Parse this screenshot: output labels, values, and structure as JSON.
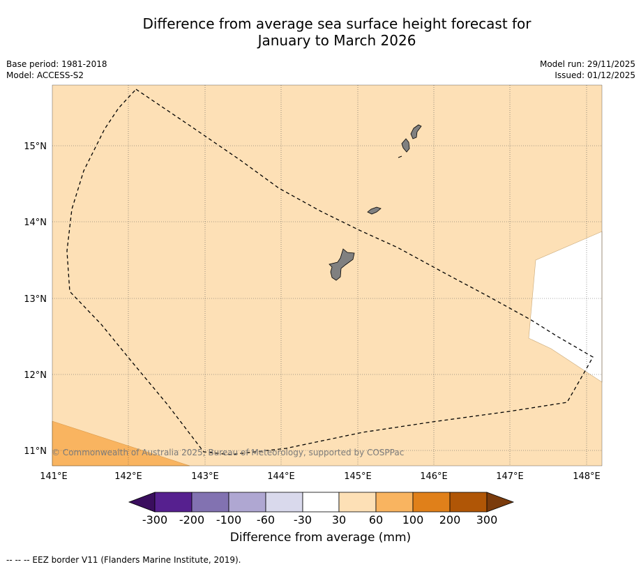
{
  "title": {
    "line1": "Difference from average sea surface height forecast for",
    "line2": "January to March 2026"
  },
  "meta_left": {
    "base_period": "Base period: 1981-2018",
    "model": "Model: ACCESS-S2"
  },
  "meta_right": {
    "model_run": "Model run: 29/11/2025",
    "issued": "Issued: 01/12/2025"
  },
  "map": {
    "lon_range": [
      141.0,
      148.2
    ],
    "lat_range": [
      10.8,
      15.8
    ],
    "lon_ticks": [
      "141°E",
      "142°E",
      "143°E",
      "144°E",
      "145°E",
      "146°E",
      "147°E",
      "148°E"
    ],
    "lat_ticks": [
      "15°N",
      "14°N",
      "13°N",
      "12°N",
      "11°N"
    ],
    "background_category": "30 to 60",
    "credit": "© Commonwealth of Australia 2025, Bureau of Meteorology, supported by COSPPac",
    "islands": [
      "Guam",
      "Rota",
      "Tinian",
      "Saipan"
    ]
  },
  "colorbar": {
    "title": "Difference from average (mm)",
    "tick_labels": [
      "-300",
      "-200",
      "-100",
      "-60",
      "-30",
      "30",
      "60",
      "100",
      "200",
      "300"
    ],
    "colors": [
      "#3a0e5e",
      "#56208f",
      "#8272b1",
      "#afa7d2",
      "#d9d9ec",
      "#ffffff",
      "#fde0b6",
      "#f9b460",
      "#e0801a",
      "#b05606",
      "#7a3b0c"
    ]
  },
  "footnote": "--  --  -- EEZ border V11 (Flanders Marine Institute, 2019)."
}
